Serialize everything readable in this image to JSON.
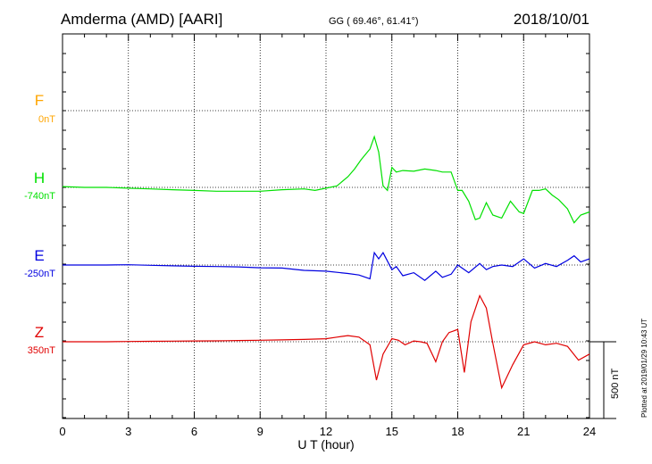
{
  "header": {
    "station": "Amderma (AMD)  [AARI]",
    "coords": "GG ( 69.46°,  61.41°)",
    "date": "2018/10/01"
  },
  "footer_note": "Plotted at 2019/01/29 10:43 UT",
  "chart_data": {
    "type": "line",
    "xlabel": "U T (hour)",
    "x_ticks": [
      "0",
      "3",
      "6",
      "9",
      "12",
      "15",
      "18",
      "21",
      "24"
    ],
    "xlim": [
      0,
      24
    ],
    "scale_bar": "500 nT",
    "series": [
      {
        "name": "F",
        "baseline": "0nT",
        "color": "#ffa500",
        "x": [],
        "values": []
      },
      {
        "name": "H",
        "baseline": "-740nT",
        "color": "#00e000",
        "x": [
          0,
          1,
          2,
          3,
          4,
          5,
          6,
          7,
          8,
          9,
          10,
          11,
          11.5,
          12,
          12.5,
          13,
          13.3,
          13.6,
          14,
          14.2,
          14.4,
          14.6,
          14.8,
          15,
          15.2,
          15.5,
          16,
          16.5,
          17,
          17.3,
          17.7,
          18,
          18.2,
          18.5,
          18.8,
          19,
          19.3,
          19.6,
          20,
          20.4,
          20.8,
          21,
          21.4,
          21.7,
          22,
          22.3,
          22.6,
          23,
          23.3,
          23.6,
          24
        ],
        "values": [
          5,
          0,
          0,
          -5,
          -10,
          -15,
          -20,
          -25,
          -25,
          -25,
          -15,
          -10,
          -20,
          -5,
          10,
          70,
          120,
          180,
          250,
          330,
          230,
          10,
          -20,
          130,
          100,
          110,
          105,
          120,
          110,
          100,
          100,
          -20,
          -20,
          -90,
          -210,
          -200,
          -100,
          -180,
          -200,
          -90,
          -160,
          -170,
          -20,
          -20,
          -10,
          -50,
          -80,
          -140,
          -230,
          -180,
          -160
        ]
      },
      {
        "name": "E",
        "baseline": "-250nT",
        "color": "#0000e0",
        "x": [
          0,
          1,
          2,
          3,
          4,
          5,
          6,
          7,
          8,
          9,
          10,
          11,
          12,
          13,
          13.5,
          14,
          14.2,
          14.4,
          14.6,
          15,
          15.2,
          15.5,
          16,
          16.5,
          17,
          17.3,
          17.7,
          18,
          18.5,
          19,
          19.3,
          19.6,
          20,
          20.5,
          21,
          21.5,
          22,
          22.5,
          23,
          23.3,
          23.6,
          24
        ],
        "values": [
          0,
          0,
          0,
          2,
          -2,
          -5,
          -8,
          -10,
          -12,
          -18,
          -20,
          -35,
          -40,
          -55,
          -65,
          -90,
          80,
          40,
          80,
          -30,
          -10,
          -70,
          -50,
          -100,
          -40,
          -80,
          -60,
          0,
          -50,
          10,
          -30,
          -10,
          0,
          -10,
          40,
          -20,
          10,
          -10,
          30,
          60,
          20,
          40
        ]
      },
      {
        "name": "Z",
        "baseline": "350nT",
        "color": "#e00000",
        "x": [
          0,
          1,
          2,
          3,
          4,
          5,
          6,
          7,
          8,
          9,
          10,
          11,
          12,
          12.5,
          13,
          13.5,
          14,
          14.3,
          14.6,
          15,
          15.3,
          15.6,
          16,
          16.3,
          16.6,
          17,
          17.3,
          17.6,
          18,
          18.3,
          18.6,
          19,
          19.3,
          19.6,
          20,
          20.5,
          21,
          21.5,
          22,
          22.5,
          23,
          23.5,
          24
        ],
        "values": [
          0,
          0,
          0,
          2,
          3,
          4,
          5,
          6,
          8,
          10,
          12,
          15,
          20,
          30,
          40,
          30,
          -20,
          -250,
          -80,
          20,
          10,
          -20,
          5,
          0,
          -10,
          -130,
          0,
          60,
          80,
          -200,
          130,
          300,
          220,
          -10,
          -300,
          -150,
          -20,
          0,
          -20,
          -10,
          -30,
          -120,
          -80
        ]
      }
    ]
  }
}
